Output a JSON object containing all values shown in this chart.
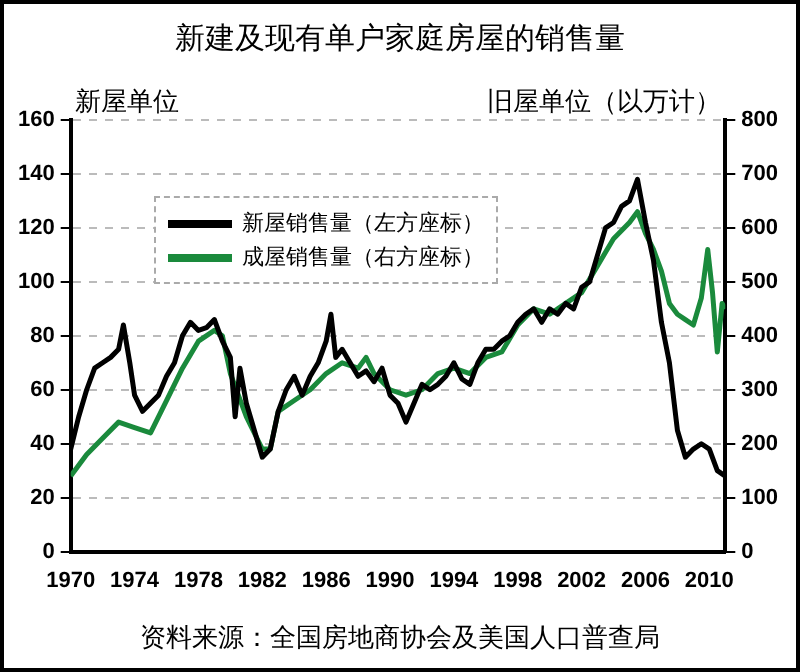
{
  "chart_data": {
    "type": "line",
    "title": "新建及现有单户家庭房屋的销售量",
    "ylabel": "新屋单位",
    "y2label": "旧屋单位（以万计）",
    "xlim": [
      1970,
      2011
    ],
    "xticks": [
      1970,
      1974,
      1978,
      1982,
      1986,
      1990,
      1994,
      1998,
      2002,
      2006,
      2010
    ],
    "ylim": [
      0,
      160
    ],
    "yticks": [
      0,
      20,
      40,
      60,
      80,
      100,
      120,
      140,
      160
    ],
    "y2lim": [
      0,
      800
    ],
    "y2ticks": [
      0,
      100,
      200,
      300,
      400,
      500,
      600,
      700,
      800
    ],
    "grid": "y",
    "legend": "top left",
    "annotations": [
      "资料来源：全国房地商协会及美国人口普查局"
    ],
    "series": [
      {
        "name": "新屋销售量（左方座标）",
        "color": "#000000",
        "axis": "y",
        "x": [
          1970,
          1970.5,
          1971,
          1971.5,
          1972,
          1972.5,
          1973,
          1973.3,
          1973.7,
          1974,
          1974.5,
          1975,
          1975.5,
          1976,
          1976.5,
          1977,
          1977.5,
          1978,
          1978.5,
          1979,
          1979.5,
          1980,
          1980.3,
          1980.6,
          1981,
          1981.5,
          1982,
          1982.5,
          1983,
          1983.5,
          1984,
          1984.5,
          1985,
          1985.5,
          1986,
          1986.3,
          1986.6,
          1987,
          1987.5,
          1988,
          1988.5,
          1989,
          1989.5,
          1990,
          1990.5,
          1991,
          1991.5,
          1992,
          1992.5,
          1993,
          1993.5,
          1994,
          1994.5,
          1995,
          1995.5,
          1996,
          1996.5,
          1997,
          1997.5,
          1998,
          1998.5,
          1999,
          1999.5,
          2000,
          2000.5,
          2001,
          2001.5,
          2002,
          2002.5,
          2003,
          2003.5,
          2004,
          2004.5,
          2005,
          2005.5,
          2006,
          2006.5,
          2007,
          2007.5,
          2008,
          2008.5,
          2009,
          2009.5,
          2010,
          2010.5,
          2011
        ],
        "values": [
          38,
          50,
          60,
          68,
          70,
          72,
          75,
          84,
          70,
          58,
          52,
          55,
          58,
          65,
          70,
          80,
          85,
          82,
          83,
          86,
          78,
          72,
          50,
          68,
          55,
          45,
          35,
          38,
          52,
          60,
          65,
          58,
          65,
          70,
          78,
          88,
          72,
          75,
          70,
          65,
          67,
          63,
          68,
          58,
          55,
          48,
          55,
          62,
          60,
          62,
          65,
          70,
          64,
          62,
          70,
          75,
          75,
          78,
          80,
          85,
          88,
          90,
          85,
          90,
          88,
          92,
          90,
          98,
          100,
          110,
          120,
          122,
          128,
          130,
          138,
          122,
          108,
          85,
          70,
          45,
          35,
          38,
          40,
          38,
          30,
          28
        ]
      },
      {
        "name": "成屋销售量（右方座标）",
        "color": "#1a8a3c",
        "axis": "y2",
        "x": [
          1970,
          1971,
          1972,
          1973,
          1974,
          1975,
          1976,
          1977,
          1978,
          1979,
          1979.5,
          1980,
          1980.5,
          1981,
          1982,
          1982.5,
          1983,
          1984,
          1985,
          1986,
          1987,
          1988,
          1988.5,
          1989,
          1990,
          1991,
          1992,
          1993,
          1994,
          1995,
          1996,
          1997,
          1998,
          1999,
          2000,
          2001,
          2002,
          2003,
          2004,
          2005,
          2005.5,
          2006,
          2006.5,
          2007,
          2007.5,
          2008,
          2008.5,
          2009,
          2009.5,
          2009.9,
          2010.2,
          2010.5,
          2010.8,
          2011
        ],
        "values": [
          140,
          180,
          210,
          240,
          230,
          220,
          280,
          340,
          390,
          410,
          400,
          330,
          290,
          250,
          190,
          190,
          260,
          280,
          300,
          330,
          350,
          340,
          360,
          330,
          300,
          290,
          300,
          330,
          340,
          330,
          360,
          370,
          420,
          450,
          440,
          460,
          480,
          530,
          580,
          610,
          630,
          590,
          560,
          520,
          460,
          440,
          430,
          420,
          470,
          560,
          480,
          370,
          460,
          450
        ]
      }
    ]
  }
}
